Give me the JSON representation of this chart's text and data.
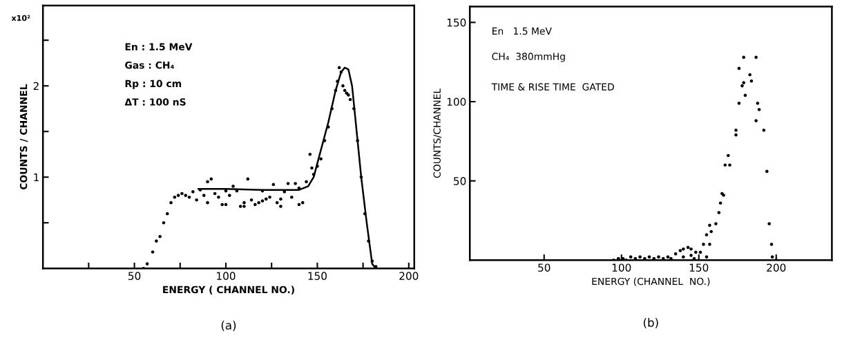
{
  "chart_data": [
    {
      "type": "scatter",
      "xlabel": "ENERGY ( CHANNEL NO.)",
      "ylabel": "COUNTS / CHANNEL",
      "annotations": [
        "x10²",
        "En : 1.5 MeV",
        "Gas : CH₄",
        "Rp : 10 cm",
        "ΔT : 100 nS",
        "(a)"
      ],
      "xlim": [
        0,
        203
      ],
      "ylim": [
        0,
        2.88
      ],
      "xticks": [
        {
          "value": 25,
          "label": null
        },
        50,
        {
          "value": 75,
          "label": null
        },
        100,
        {
          "value": 125,
          "label": null
        },
        150,
        {
          "value": 175,
          "label": null
        },
        200
      ],
      "yticks": [
        {
          "value": 0.5,
          "label": null
        },
        1,
        {
          "value": 1.5,
          "label": null
        },
        2,
        {
          "value": 2.5,
          "label": null
        }
      ],
      "grid": false,
      "marker": "circle",
      "series": [
        {
          "color": "#000000",
          "x": [
            55,
            57,
            60,
            62,
            64,
            66,
            68,
            70,
            72,
            74,
            76,
            78,
            80,
            82,
            84,
            86,
            88,
            90,
            92,
            94,
            96,
            98,
            100,
            102,
            104,
            106,
            108,
            110,
            112,
            114,
            116,
            118,
            120,
            122,
            124,
            126,
            128,
            130,
            132,
            134,
            136,
            138,
            140,
            142,
            144,
            146,
            147,
            148,
            150,
            152,
            154,
            156,
            158,
            160,
            161,
            162,
            163,
            164,
            165,
            166,
            167,
            168,
            170,
            172,
            174,
            176,
            178,
            180,
            182,
            90,
            100,
            110,
            120,
            130,
            140
          ],
          "values": [
            0,
            0.05,
            0.18,
            0.3,
            0.35,
            0.5,
            0.6,
            0.72,
            0.78,
            0.8,
            0.82,
            0.8,
            0.78,
            0.84,
            0.75,
            0.86,
            0.8,
            0.95,
            0.98,
            0.82,
            0.78,
            0.7,
            0.85,
            0.8,
            0.9,
            0.85,
            0.68,
            0.72,
            0.98,
            0.75,
            0.7,
            0.72,
            0.85,
            0.76,
            0.78,
            0.92,
            0.72,
            0.68,
            0.84,
            0.93,
            0.78,
            0.93,
            0.88,
            0.72,
            0.95,
            1.25,
            1.1,
            1.03,
            1.12,
            1.2,
            1.4,
            1.55,
            1.75,
            1.95,
            2.05,
            2.2,
            2.15,
            2.0,
            1.95,
            1.92,
            1.9,
            1.85,
            1.75,
            1.4,
            1.0,
            0.6,
            0.3,
            0.08,
            0.02,
            0.72,
            0.7,
            0.68,
            0.74,
            0.76,
            0.7
          ]
        },
        {
          "type": "line",
          "color": "#000000",
          "marker": "none",
          "line_style": "solid",
          "x": [
            85,
            100,
            120,
            140,
            145,
            148,
            152,
            156,
            160,
            163,
            165,
            167,
            169,
            171,
            174,
            177,
            180,
            182,
            190,
            203
          ],
          "values": [
            0.87,
            0.87,
            0.86,
            0.86,
            0.9,
            1.0,
            1.3,
            1.6,
            1.95,
            2.15,
            2.2,
            2.18,
            2.0,
            1.6,
            1.0,
            0.5,
            0.05,
            0,
            0,
            0
          ]
        }
      ]
    },
    {
      "type": "scatter",
      "xlabel": "ENERGY (CHANNEL  NO.)",
      "ylabel": "COUNTS/CHANNEL",
      "annotations": [
        "En   1.5 MeV",
        "CH₄  380mmHg",
        "TIME & RISE TIME  GATED",
        "(b)"
      ],
      "xlim": [
        2,
        236
      ],
      "ylim": [
        0,
        160
      ],
      "xticks": [
        50,
        100,
        150,
        200
      ],
      "yticks": [
        50,
        100,
        150
      ],
      "grid": false,
      "marker": "circle",
      "series": [
        {
          "color": "#000000",
          "x": [
            95,
            98,
            101,
            103,
            106,
            109,
            112,
            115,
            118,
            121,
            124,
            127,
            130,
            132,
            135,
            138,
            140,
            143,
            145,
            148,
            140,
            145,
            147,
            151,
            153,
            155,
            155,
            157,
            157,
            158,
            161,
            163,
            164,
            165,
            166,
            167,
            169,
            170,
            174,
            174,
            176,
            176,
            178,
            179,
            179,
            180,
            183,
            184,
            187,
            187,
            188,
            189,
            192,
            194,
            195.5,
            197,
            197.5,
            200
          ],
          "values": [
            0,
            1,
            1,
            0,
            2,
            1,
            2,
            1,
            2,
            1,
            2,
            1,
            2,
            1,
            4,
            6,
            7,
            8,
            7,
            5,
            2,
            3,
            1,
            5,
            10,
            16,
            2,
            22,
            10,
            18,
            23,
            30,
            36,
            42,
            41,
            60,
            66,
            60,
            82,
            79,
            121,
            99,
            110,
            128,
            112,
            104,
            117,
            113,
            128,
            88,
            99,
            95,
            82,
            56,
            23,
            10,
            2,
            0
          ]
        }
      ]
    }
  ]
}
